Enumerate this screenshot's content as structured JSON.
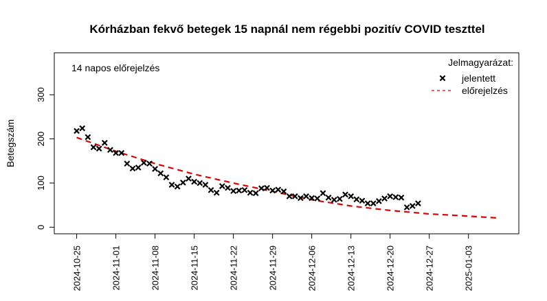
{
  "chart_data": {
    "type": "scatter",
    "title": "Kórházban fekvő betegek 15 napnál nem régebbi pozitív COVID teszttel",
    "subtitle": "14 napos előrejelzés",
    "xlabel": "",
    "ylabel": "Betegszám",
    "x_type": "date",
    "xlim": [
      "2024-10-21",
      "2025-01-12"
    ],
    "ylim": [
      -15,
      395
    ],
    "x_ticks": [
      "2024-10-25",
      "2024-11-01",
      "2024-11-08",
      "2024-11-15",
      "2024-11-22",
      "2024-11-29",
      "2024-12-06",
      "2024-12-13",
      "2024-12-20",
      "2024-12-27",
      "2025-01-03"
    ],
    "y_ticks": [
      0,
      100,
      200,
      300
    ],
    "grid": false,
    "legend": {
      "title": "Jelmagyarázat:",
      "position": "top-right",
      "entries": [
        {
          "label": "jelentett",
          "marker": "x",
          "color": "#000000"
        },
        {
          "label": "előrejelzés",
          "marker": "dashed-line",
          "color": "#e00000"
        }
      ]
    },
    "series": [
      {
        "name": "jelentett",
        "kind": "points",
        "color": "#000000",
        "points": [
          [
            "2024-10-25",
            218
          ],
          [
            "2024-10-26",
            224
          ],
          [
            "2024-10-27",
            204
          ],
          [
            "2024-10-28",
            181
          ],
          [
            "2024-10-29",
            178
          ],
          [
            "2024-10-30",
            191
          ],
          [
            "2024-10-31",
            175
          ],
          [
            "2024-11-01",
            168
          ],
          [
            "2024-11-02",
            168
          ],
          [
            "2024-11-03",
            144
          ],
          [
            "2024-11-04",
            133
          ],
          [
            "2024-11-05",
            135
          ],
          [
            "2024-11-06",
            146
          ],
          [
            "2024-11-07",
            144
          ],
          [
            "2024-11-08",
            132
          ],
          [
            "2024-11-09",
            122
          ],
          [
            "2024-11-10",
            113
          ],
          [
            "2024-11-11",
            96
          ],
          [
            "2024-11-12",
            92
          ],
          [
            "2024-11-13",
            101
          ],
          [
            "2024-11-14",
            110
          ],
          [
            "2024-11-15",
            103
          ],
          [
            "2024-11-16",
            100
          ],
          [
            "2024-11-17",
            96
          ],
          [
            "2024-11-18",
            84
          ],
          [
            "2024-11-19",
            78
          ],
          [
            "2024-11-20",
            93
          ],
          [
            "2024-11-21",
            89
          ],
          [
            "2024-11-22",
            82
          ],
          [
            "2024-11-23",
            83
          ],
          [
            "2024-11-24",
            84
          ],
          [
            "2024-11-25",
            78
          ],
          [
            "2024-11-26",
            77
          ],
          [
            "2024-11-27",
            88
          ],
          [
            "2024-11-28",
            89
          ],
          [
            "2024-11-29",
            83
          ],
          [
            "2024-11-30",
            85
          ],
          [
            "2024-12-01",
            81
          ],
          [
            "2024-12-02",
            70
          ],
          [
            "2024-12-03",
            70
          ],
          [
            "2024-12-04",
            66
          ],
          [
            "2024-12-05",
            70
          ],
          [
            "2024-12-06",
            66
          ],
          [
            "2024-12-07",
            65
          ],
          [
            "2024-12-08",
            77
          ],
          [
            "2024-12-09",
            67
          ],
          [
            "2024-12-10",
            62
          ],
          [
            "2024-12-11",
            64
          ],
          [
            "2024-12-12",
            74
          ],
          [
            "2024-12-13",
            70
          ],
          [
            "2024-12-14",
            63
          ],
          [
            "2024-12-15",
            60
          ],
          [
            "2024-12-16",
            54
          ],
          [
            "2024-12-17",
            54
          ],
          [
            "2024-12-18",
            59
          ],
          [
            "2024-12-19",
            65
          ],
          [
            "2024-12-20",
            70
          ],
          [
            "2024-12-21",
            68
          ],
          [
            "2024-12-22",
            67
          ],
          [
            "2024-12-23",
            45
          ],
          [
            "2024-12-24",
            48
          ],
          [
            "2024-12-25",
            54
          ]
        ]
      },
      {
        "name": "előrejelzés",
        "kind": "dashed-line",
        "color": "#e00000",
        "points": [
          [
            "2024-10-25",
            203
          ],
          [
            "2024-11-01",
            172
          ],
          [
            "2024-11-08",
            144
          ],
          [
            "2024-11-15",
            120
          ],
          [
            "2024-11-22",
            100
          ],
          [
            "2024-11-29",
            81
          ],
          [
            "2024-12-06",
            62
          ],
          [
            "2024-12-13",
            48
          ],
          [
            "2024-12-20",
            38
          ],
          [
            "2024-12-27",
            30
          ],
          [
            "2025-01-03",
            25
          ],
          [
            "2025-01-08",
            21
          ]
        ]
      }
    ]
  }
}
